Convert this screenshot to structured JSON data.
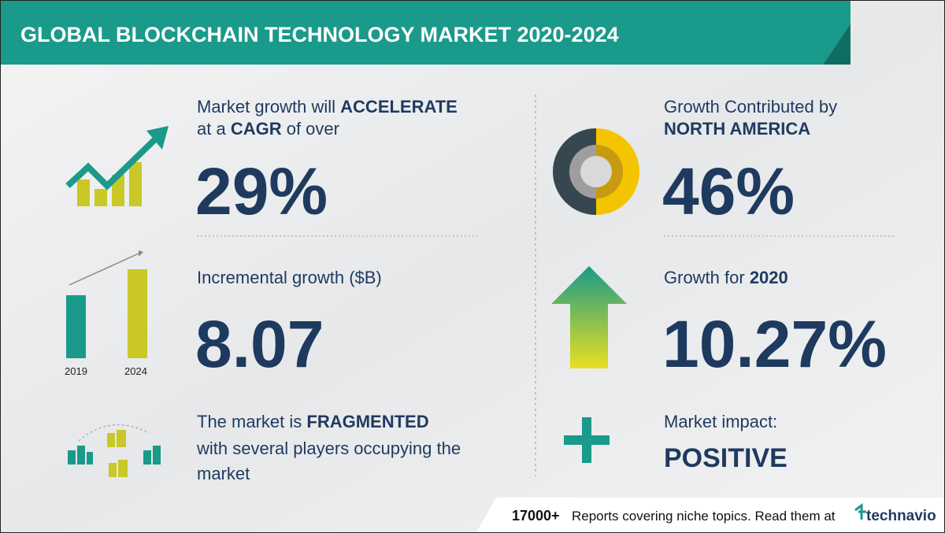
{
  "header": {
    "title": "GLOBAL BLOCKCHAIN TECHNOLOGY MARKET 2020-2024"
  },
  "left": {
    "growth": {
      "line1": "Market growth will ",
      "line1_bold": "ACCELERATE",
      "line2": "at a ",
      "line2_bold": "CAGR",
      "line2_end": " of over",
      "value": "29%"
    },
    "incremental": {
      "label": "Incremental growth ($B)",
      "value": "8.07",
      "icon_labels": [
        "2019",
        "2024"
      ]
    },
    "fragmented": {
      "line1": "The market is ",
      "line1_bold": "FRAGMENTED",
      "line2": "with several players occupying the",
      "line3": "market"
    }
  },
  "right": {
    "contribution": {
      "line1": "Growth Contributed by",
      "line2_bold": "NORTH AMERICA",
      "value": "46%"
    },
    "yoy": {
      "label": "Growth for ",
      "label_bold": "2020",
      "value": "10.27%"
    },
    "impact": {
      "label": "Market impact:",
      "value": "POSITIVE"
    }
  },
  "footer": {
    "count": "17000+",
    "text": "Reports covering niche topics. Read them at",
    "brand": "technavio"
  }
}
